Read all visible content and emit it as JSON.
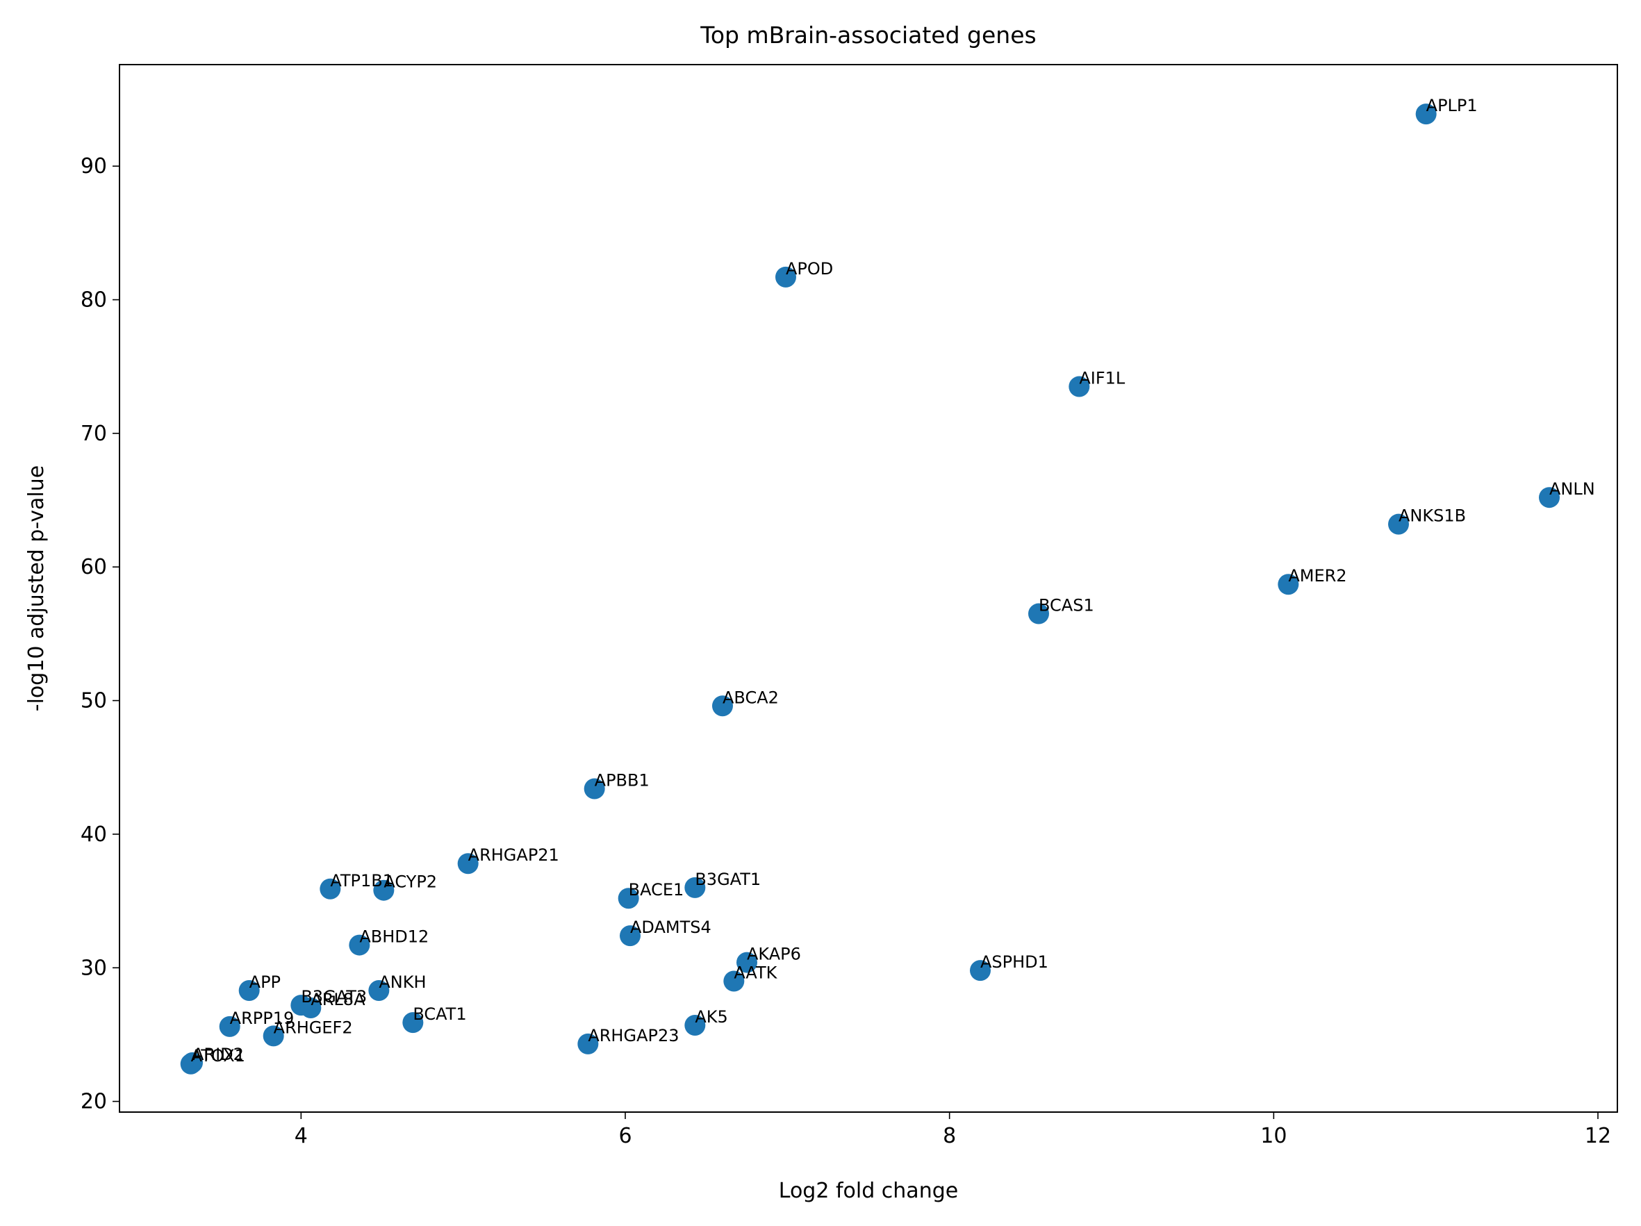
{
  "chart_data": {
    "type": "scatter",
    "title": "Top mBrain-associated genes",
    "xlabel": "Log2 fold change",
    "ylabel": "-log10 adjusted p-value",
    "xlim": [
      2.88,
      12.12
    ],
    "ylim": [
      19.2,
      97.6
    ],
    "xticks": [
      4,
      6,
      8,
      10,
      12
    ],
    "yticks": [
      20,
      30,
      40,
      50,
      60,
      70,
      80,
      90
    ],
    "grid": false,
    "legend": "none",
    "marker_color": "#1f77b4",
    "points": [
      {
        "label": "APLP1",
        "x": 10.94,
        "y": 93.9
      },
      {
        "label": "APOD",
        "x": 6.99,
        "y": 81.7
      },
      {
        "label": "AIF1L",
        "x": 8.8,
        "y": 73.5
      },
      {
        "label": "ANLN",
        "x": 11.7,
        "y": 65.2
      },
      {
        "label": "ANKS1B",
        "x": 10.77,
        "y": 63.2
      },
      {
        "label": "AMER2",
        "x": 10.09,
        "y": 58.7
      },
      {
        "label": "BCAS1",
        "x": 8.55,
        "y": 56.5
      },
      {
        "label": "ABCA2",
        "x": 6.6,
        "y": 49.6
      },
      {
        "label": "APBB1",
        "x": 5.81,
        "y": 43.4
      },
      {
        "label": "ARHGAP21",
        "x": 5.03,
        "y": 37.8
      },
      {
        "label": "ATP1B1",
        "x": 4.18,
        "y": 35.9
      },
      {
        "label": "ACYP2",
        "x": 4.51,
        "y": 35.8
      },
      {
        "label": "B3GAT1",
        "x": 6.43,
        "y": 36.0
      },
      {
        "label": "BACE1",
        "x": 6.02,
        "y": 35.2
      },
      {
        "label": "ADAMTS4",
        "x": 6.03,
        "y": 32.4
      },
      {
        "label": "ABHD12",
        "x": 4.36,
        "y": 31.7
      },
      {
        "label": "AKAP6",
        "x": 6.75,
        "y": 30.4
      },
      {
        "label": "ASPHD1",
        "x": 8.19,
        "y": 29.8
      },
      {
        "label": "AATK",
        "x": 6.67,
        "y": 29.0
      },
      {
        "label": "APP",
        "x": 3.68,
        "y": 28.3
      },
      {
        "label": "ANKH",
        "x": 4.48,
        "y": 28.3
      },
      {
        "label": "B3GAT3",
        "x": 4.0,
        "y": 27.2
      },
      {
        "label": "ARL8A",
        "x": 4.06,
        "y": 27.0
      },
      {
        "label": "BCAT1",
        "x": 4.69,
        "y": 25.9
      },
      {
        "label": "AK5",
        "x": 6.43,
        "y": 25.7
      },
      {
        "label": "ARPP19",
        "x": 3.56,
        "y": 25.6
      },
      {
        "label": "ARHGEF2",
        "x": 3.83,
        "y": 24.9
      },
      {
        "label": "ARHGAP23",
        "x": 5.77,
        "y": 24.3
      },
      {
        "label": "ATOX1",
        "x": 3.32,
        "y": 22.8
      },
      {
        "label": "ARID2",
        "x": 3.33,
        "y": 22.9
      }
    ]
  }
}
